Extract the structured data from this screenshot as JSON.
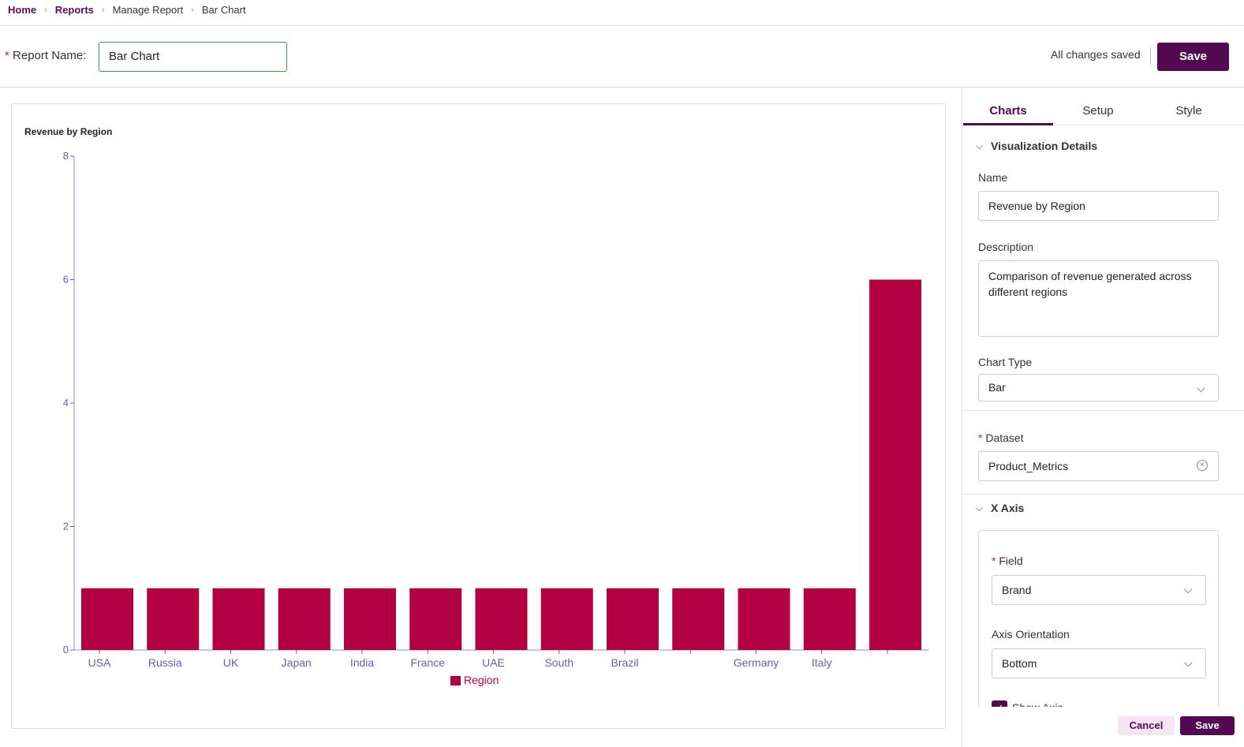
{
  "breadcrumb": [
    "Home",
    "Reports",
    "Manage Report",
    "Bar Chart"
  ],
  "header": {
    "report_name_label": "Report Name:",
    "report_name_value": "Bar Chart",
    "status": "All changes saved",
    "save_label": "Save"
  },
  "panel": {
    "tabs": [
      "Charts",
      "Setup",
      "Style"
    ],
    "active_tab": "Charts",
    "viz_section": "Visualization Details",
    "name_label": "Name",
    "name_value": "Revenue by Region",
    "description_label": "Description",
    "description_value": "Comparison of revenue generated across different regions",
    "chart_type_label": "Chart Type",
    "chart_type_value": "Bar",
    "dataset_label": "Dataset",
    "dataset_value": "Product_Metrics",
    "x_axis_section": "X Axis",
    "field_label": "Field",
    "field_value": "Brand",
    "orientation_label": "Axis Orientation",
    "orientation_value": "Bottom",
    "show_axis_label": "Show Axis",
    "show_axis_checked": true,
    "cancel_label": "Cancel",
    "save_label": "Save"
  },
  "colors": {
    "brand": "#52094f",
    "bar": "#b30041",
    "axis": "#6b5ea8"
  },
  "chart_data": {
    "type": "bar",
    "title": "Revenue by Region",
    "categories": [
      "USA",
      "Russia",
      "UK",
      "Japan",
      "India",
      "France",
      "UAE",
      "South ...",
      "Brazil",
      "",
      "Germany",
      "Italy",
      ""
    ],
    "series": [
      {
        "name": "Region",
        "values": [
          1,
          1,
          1,
          1,
          1,
          1,
          1,
          1,
          1,
          1,
          1,
          1,
          6
        ]
      }
    ],
    "ylim": [
      0,
      8
    ],
    "yticks": [
      0,
      2,
      4,
      6,
      8
    ],
    "legend": "bottom",
    "grid": false
  }
}
